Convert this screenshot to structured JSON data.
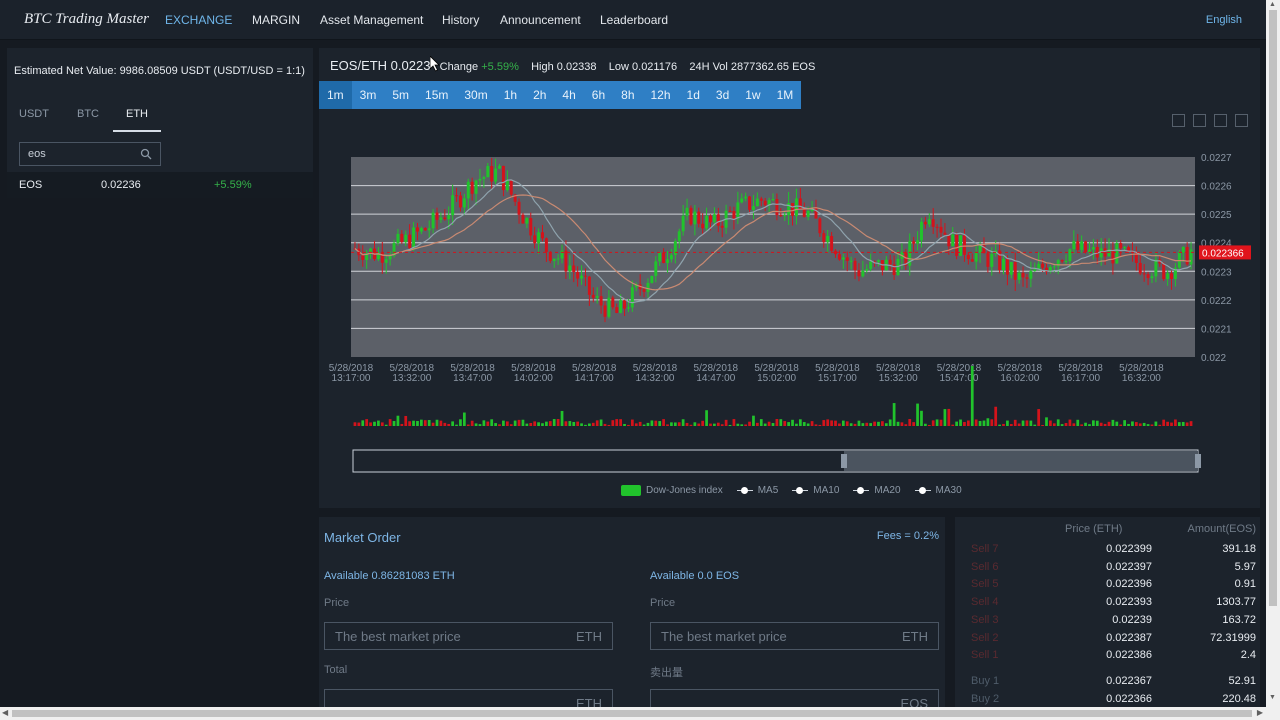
{
  "nav": {
    "brand": "BTC Trading Master",
    "links": [
      "EXCHANGE",
      "MARGIN",
      "Asset Management",
      "History",
      "Announcement",
      "Leaderboard"
    ],
    "active": "EXCHANGE",
    "language": "English"
  },
  "left": {
    "net_value": "Estimated Net Value: 9986.08509 USDT (USDT/USD = 1:1)",
    "tabs": [
      "USDT",
      "BTC",
      "ETH"
    ],
    "active_tab": "ETH",
    "search_value": "eos",
    "search_icon": "search-icon",
    "coins": [
      {
        "name": "EOS",
        "price": "0.02236",
        "change": "+5.59%"
      }
    ]
  },
  "ticker": {
    "pair": "EOS/ETH 0.0223",
    "change_label": "Change",
    "change_value": "+5.59%",
    "high": "High 0.02338",
    "low": "Low 0.021176",
    "vol": "24H Vol 2877362.65 EOS"
  },
  "intervals": [
    "1m",
    "3m",
    "5m",
    "15m",
    "30m",
    "1h",
    "2h",
    "4h",
    "6h",
    "8h",
    "12h",
    "1d",
    "3d",
    "1w",
    "1M"
  ],
  "active_interval": "1m",
  "chart_data": {
    "type": "candlestick",
    "y_ticks": [
      "0.0227",
      "0.0226",
      "0.0225",
      "0.0224",
      "0.0223",
      "0.0222",
      "0.0221",
      "0.022"
    ],
    "ylim": [
      0.022,
      0.0227
    ],
    "x_ticks": [
      [
        "5/28/2018",
        "13:17:00"
      ],
      [
        "5/28/2018",
        "13:32:00"
      ],
      [
        "5/28/2018",
        "13:47:00"
      ],
      [
        "5/28/2018",
        "14:02:00"
      ],
      [
        "5/28/2018",
        "14:17:00"
      ],
      [
        "5/28/2018",
        "14:32:00"
      ],
      [
        "5/28/2018",
        "14:47:00"
      ],
      [
        "5/28/2018",
        "15:02:00"
      ],
      [
        "5/28/2018",
        "15:17:00"
      ],
      [
        "5/28/2018",
        "15:32:00"
      ],
      [
        "5/28/2018",
        "15:47:00"
      ],
      [
        "5/28/2018",
        "16:02:00"
      ],
      [
        "5/28/2018",
        "16:17:00"
      ],
      [
        "5/28/2018",
        "16:32:00"
      ]
    ],
    "last_price": "0.022366",
    "last_price_value": 0.022366,
    "close_path": [
      0.02238,
      0.02236,
      0.0224,
      0.02245,
      0.02252,
      0.02262,
      0.02265,
      0.0225,
      0.02238,
      0.02232,
      0.0222,
      0.02215,
      0.02225,
      0.02236,
      0.0225,
      0.02246,
      0.02252,
      0.02255,
      0.02253,
      0.0225,
      0.0224,
      0.0223,
      0.02232,
      0.02233,
      0.02252,
      0.0224,
      0.02236,
      0.02233,
      0.02226,
      0.02233,
      0.02238,
      0.02236,
      0.02236,
      0.02232,
      0.0223,
      0.02237
    ],
    "candle_count": 215,
    "series": [
      {
        "name": "Dow-Jones index",
        "color": "#21c32c"
      },
      {
        "name": "MA5",
        "color": "#ffffff"
      },
      {
        "name": "MA10",
        "color": "#ffffff"
      },
      {
        "name": "MA20",
        "color": "#ffffff"
      },
      {
        "name": "MA30",
        "color": "#ffffff"
      }
    ],
    "colors": {
      "up": "#21c32c",
      "down": "#d4131b",
      "ma_a": "#8fa3ad",
      "ma_b": "#c98a72"
    }
  },
  "order": {
    "title": "Market Order",
    "fees": "Fees = 0.2%",
    "buy_available": "Available 0.86281083 ETH",
    "sell_available": "Available 0.0 EOS",
    "price_label": "Price",
    "price_placeholder": "The best market price",
    "buy_unit": "ETH",
    "sell_unit": "ETH",
    "total_label": "Total",
    "sell_amount_label": "卖出量",
    "total_unit": "ETH",
    "amount_unit": "EOS"
  },
  "book": {
    "price_header": "Price (ETH)",
    "amount_header": "Amount(EOS)",
    "sells": [
      {
        "label": "Sell 7",
        "price": "0.022399",
        "amount": "391.18"
      },
      {
        "label": "Sell 6",
        "price": "0.022397",
        "amount": "5.97"
      },
      {
        "label": "Sell 5",
        "price": "0.022396",
        "amount": "0.91"
      },
      {
        "label": "Sell 4",
        "price": "0.022393",
        "amount": "1303.77"
      },
      {
        "label": "Sell 3",
        "price": "0.02239",
        "amount": "163.72"
      },
      {
        "label": "Sell 2",
        "price": "0.022387",
        "amount": "72.31999"
      },
      {
        "label": "Sell 1",
        "price": "0.022386",
        "amount": "2.4"
      }
    ],
    "buys": [
      {
        "label": "Buy 1",
        "price": "0.022367",
        "amount": "52.91"
      },
      {
        "label": "Buy 2",
        "price": "0.022366",
        "amount": "220.48"
      }
    ]
  }
}
